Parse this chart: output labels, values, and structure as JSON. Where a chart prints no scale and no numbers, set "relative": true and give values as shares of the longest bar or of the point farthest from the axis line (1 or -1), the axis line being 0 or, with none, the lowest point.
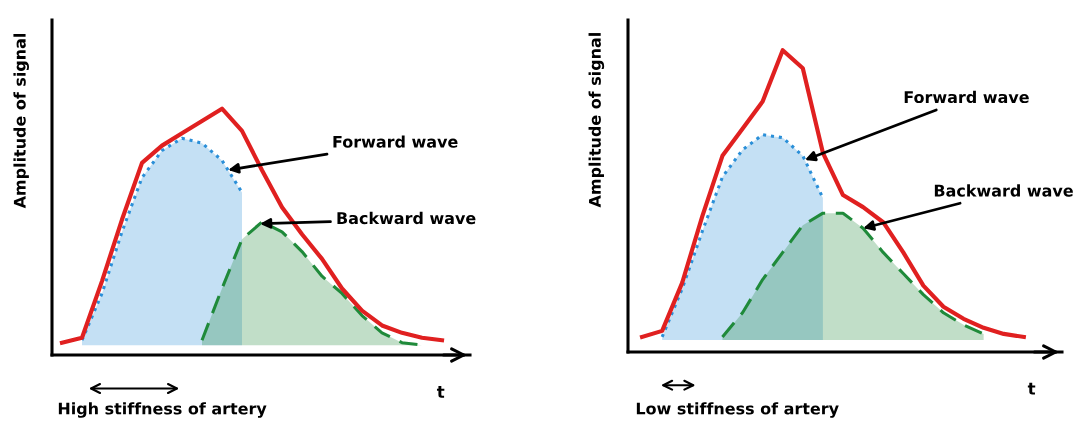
{
  "chart_data": [
    {
      "type": "line",
      "relative": true,
      "ylabel": "Amplitude of signal",
      "xlabel": "t",
      "grid": false,
      "categories": [
        null,
        null,
        null,
        null,
        null,
        null,
        null,
        null,
        null,
        null,
        null,
        null,
        null,
        null,
        null,
        null,
        null,
        null,
        null,
        null
      ],
      "series": [
        {
          "type": "area",
          "name": "Forward wave",
          "color": "#2a8fd8",
          "line_style": "dotted",
          "values": [
            null,
            0.06,
            0.25,
            0.5,
            0.72,
            0.83,
            0.88,
            0.86,
            0.79,
            0.66,
            null,
            null,
            null,
            null,
            null,
            null,
            null,
            null,
            null,
            null
          ]
        },
        {
          "type": "area",
          "name": "Backward wave",
          "color": "#1f8a3a",
          "line_style": "dashed",
          "values": [
            null,
            null,
            null,
            null,
            null,
            null,
            null,
            0.06,
            0.27,
            0.47,
            0.54,
            0.5,
            0.42,
            0.32,
            0.25,
            0.16,
            0.09,
            0.05,
            0.04,
            null
          ]
        },
        {
          "color": "#e02020",
          "line_style": "solid",
          "values": [
            0.05,
            0.07,
            0.3,
            0.55,
            0.78,
            0.85,
            0.9,
            0.95,
            1.0,
            0.91,
            0.75,
            0.6,
            0.49,
            0.39,
            0.27,
            0.18,
            0.12,
            0.09,
            0.07,
            0.06
          ]
        }
      ],
      "annotations": [
        "High stiffness of artery"
      ]
    },
    {
      "type": "line",
      "relative": true,
      "ylabel": "Amplitude of signal",
      "xlabel": "t",
      "grid": false,
      "categories": [
        null,
        null,
        null,
        null,
        null,
        null,
        null,
        null,
        null,
        null,
        null,
        null,
        null,
        null,
        null,
        null,
        null,
        null,
        null,
        null
      ],
      "series": [
        {
          "type": "area",
          "name": "Forward wave",
          "color": "#2a8fd8",
          "line_style": "dotted",
          "values": [
            null,
            0.05,
            0.21,
            0.4,
            0.58,
            0.67,
            0.72,
            0.71,
            0.65,
            0.51,
            null,
            null,
            null,
            null,
            null,
            null,
            null,
            null,
            null,
            null
          ]
        },
        {
          "type": "area",
          "name": "Backward wave",
          "color": "#1f8a3a",
          "line_style": "dashed",
          "values": [
            null,
            null,
            null,
            null,
            0.05,
            0.13,
            0.24,
            0.33,
            0.42,
            0.46,
            0.46,
            0.41,
            0.33,
            0.26,
            0.19,
            0.13,
            0.09,
            0.06,
            null,
            null
          ]
        },
        {
          "color": "#e02020",
          "line_style": "solid",
          "values": [
            0.05,
            0.07,
            0.23,
            0.45,
            0.65,
            0.74,
            0.83,
            1.0,
            0.94,
            0.66,
            0.52,
            0.48,
            0.43,
            0.33,
            0.22,
            0.15,
            0.11,
            0.08,
            0.06,
            0.05
          ]
        }
      ],
      "annotations": [
        "Low stiffness of artery"
      ]
    }
  ]
}
